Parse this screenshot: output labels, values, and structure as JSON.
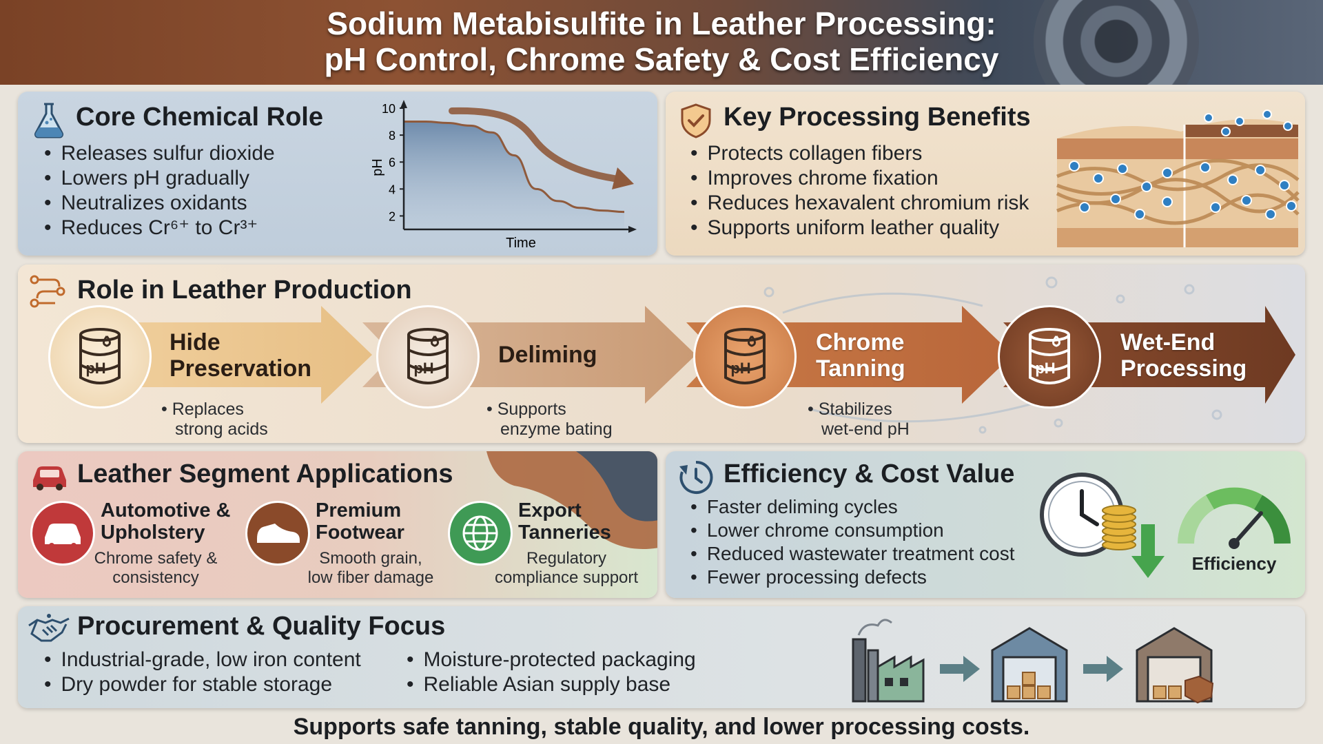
{
  "header": {
    "title_line1": "Sodium Metabisulfite in Leather Processing:",
    "title_line2": "pH Control, Chrome Safety & Cost Efficiency"
  },
  "core": {
    "title": "Core Chemical Role",
    "bullets": [
      "Releases sulfur dioxide",
      "Lowers pH gradually",
      "Neutralizes oxidants",
      "Reduces Cr⁶⁺ to Cr³⁺"
    ],
    "chart": {
      "y_label": "pH",
      "x_label": "Time",
      "y_ticks": [
        "10",
        "8",
        "6",
        "4",
        "2"
      ]
    }
  },
  "chart_data": {
    "type": "area",
    "xlabel": "Time",
    "ylabel": "pH",
    "ylim": [
      1,
      10
    ],
    "y_ticks": [
      2,
      4,
      6,
      8,
      10
    ],
    "x": [
      0,
      1,
      2,
      3,
      4,
      5,
      6,
      7,
      8,
      9,
      10
    ],
    "series": [
      {
        "values": [
          9.0,
          9.0,
          8.9,
          8.7,
          8.2,
          6.5,
          4.0,
          3.1,
          2.6,
          2.4,
          2.3
        ]
      }
    ]
  },
  "benefits": {
    "title": "Key Processing Benefits",
    "bullets": [
      "Protects collagen fibers",
      "Improves chrome fixation",
      "Reduces hexavalent chromium risk",
      "Supports uniform leather quality"
    ]
  },
  "role": {
    "title": "Role in Leather Production",
    "drum_text": "pH",
    "steps": [
      {
        "label_l1": "Hide",
        "label_l2": "Preservation",
        "note_l1": "• Replaces",
        "note_l2": "strong acids"
      },
      {
        "label_l1": "Deliming",
        "label_l2": "",
        "note_l1": "• Supports",
        "note_l2": "enzyme bating"
      },
      {
        "label_l1": "Chrome",
        "label_l2": "Tanning",
        "note_l1": "• Stabilizes",
        "note_l2": "wet-end pH"
      },
      {
        "label_l1": "Wet-End",
        "label_l2": "Processing",
        "note_l1": "",
        "note_l2": ""
      }
    ]
  },
  "segments": {
    "title": "Leather Segment Applications",
    "items": [
      {
        "l1": "Automotive &",
        "l2": "Upholstery",
        "n1": "Chrome safety &",
        "n2": "consistency",
        "icon": "car-icon",
        "color": "#c0393a"
      },
      {
        "l1": "Premium",
        "l2": "Footwear",
        "n1": "Smooth grain,",
        "n2": "low fiber damage",
        "icon": "shoe-icon",
        "color": "#8a4a2a"
      },
      {
        "l1": "Export",
        "l2": "Tanneries",
        "n1": "Regulatory",
        "n2": "compliance support",
        "icon": "globe-icon",
        "color": "#3f9a55"
      }
    ]
  },
  "efficiency": {
    "title": "Efficiency & Cost Value",
    "bullets": [
      "Faster deliming cycles",
      "Lower chrome consumption",
      "Reduced wastewater treatment cost",
      "Fewer processing defects"
    ],
    "gauge_label": "Efficiency"
  },
  "procurement": {
    "title": "Procurement & Quality Focus",
    "col1": [
      "Industrial-grade, low iron content",
      "Dry powder for stable storage"
    ],
    "col2": [
      "Moisture-protected packaging",
      "Reliable Asian supply base"
    ]
  },
  "footer": "Supports safe tanning, stable quality, and lower processing costs."
}
